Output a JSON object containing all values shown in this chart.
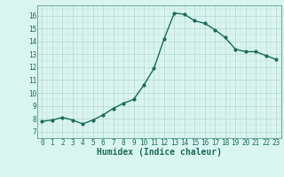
{
  "x": [
    0,
    1,
    2,
    3,
    4,
    5,
    6,
    7,
    8,
    9,
    10,
    11,
    12,
    13,
    14,
    15,
    16,
    17,
    18,
    19,
    20,
    21,
    22,
    23
  ],
  "y": [
    7.8,
    7.9,
    8.1,
    7.9,
    7.6,
    7.9,
    8.3,
    8.8,
    9.2,
    9.5,
    10.6,
    11.9,
    14.2,
    16.2,
    16.1,
    15.6,
    15.4,
    14.9,
    14.3,
    13.4,
    13.2,
    13.2,
    12.9,
    12.6
  ],
  "line_color": "#1a6b5a",
  "marker": "o",
  "marker_size": 2,
  "bg_color": "#d8f5f0",
  "xlabel": "Humidex (Indice chaleur)",
  "xlabel_fontsize": 7,
  "ylabel_ticks": [
    7,
    8,
    9,
    10,
    11,
    12,
    13,
    14,
    15,
    16
  ],
  "xlim": [
    -0.5,
    23.5
  ],
  "ylim": [
    7,
    16.8
  ],
  "xtick_labels": [
    "0",
    "1",
    "2",
    "3",
    "4",
    "5",
    "6",
    "7",
    "8",
    "9",
    "10",
    "11",
    "12",
    "13",
    "14",
    "15",
    "16",
    "17",
    "18",
    "19",
    "20",
    "21",
    "22",
    "23"
  ],
  "tick_fontsize": 5.5,
  "line_width": 1.0
}
